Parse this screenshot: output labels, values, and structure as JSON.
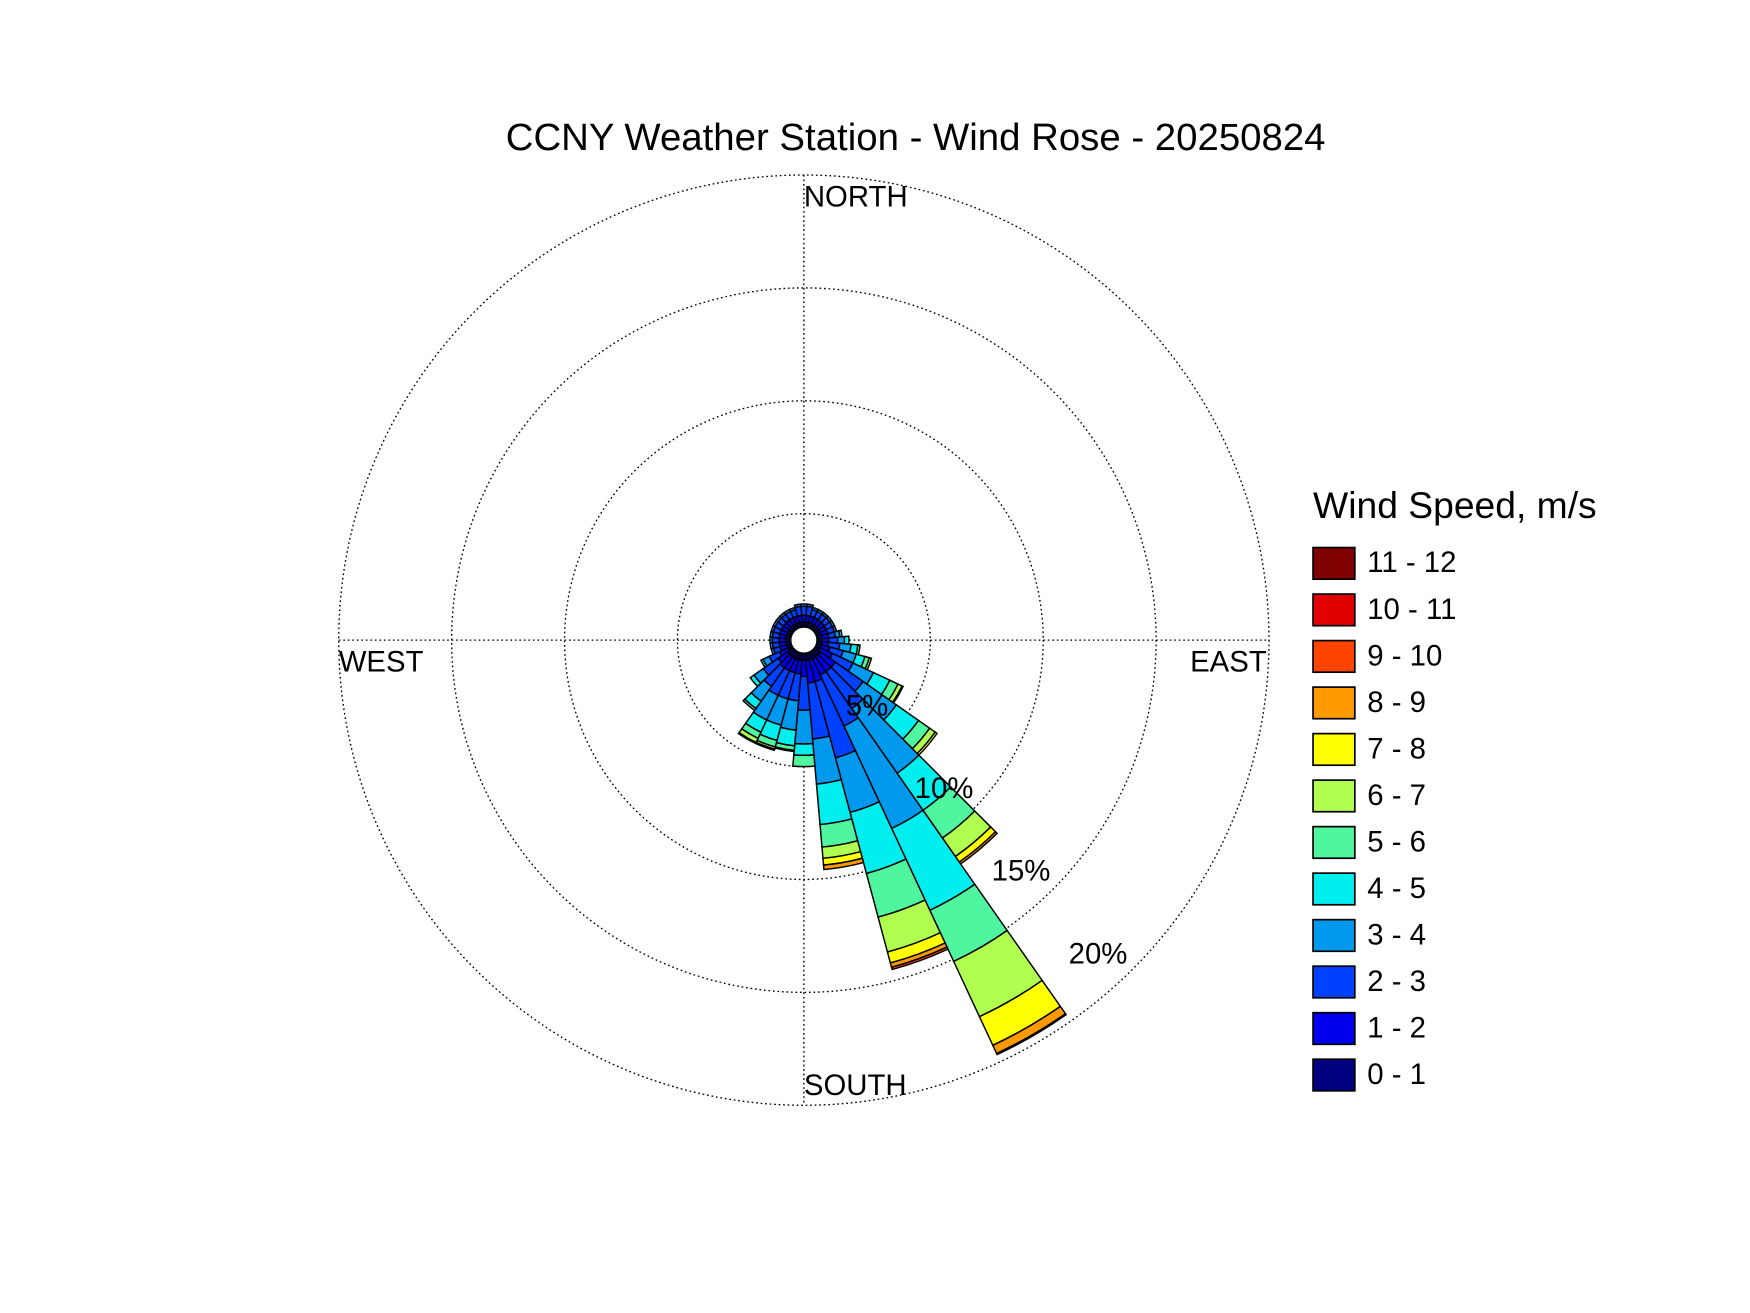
{
  "chart_data": {
    "type": "windrose",
    "title": "CCNY Weather Station - Wind Rose - 20250824",
    "legend_title": "Wind Speed, m/s",
    "directions": [
      "NORTH",
      "EAST",
      "SOUTH",
      "WEST"
    ],
    "x": [
      0,
      10,
      20,
      30,
      40,
      50,
      60,
      70,
      80,
      90,
      100,
      110,
      120,
      130,
      140,
      150,
      160,
      170,
      180,
      190,
      200,
      210,
      220,
      230,
      240,
      250,
      260,
      270,
      280,
      290,
      300,
      310,
      320,
      330,
      340,
      350
    ],
    "rlim": [
      0,
      20
    ],
    "rticks": [
      {
        "value": 5,
        "label": "5%"
      },
      {
        "value": 10,
        "label": "10%"
      },
      {
        "value": 15,
        "label": "15%"
      },
      {
        "value": 20,
        "label": "20%"
      }
    ],
    "grid": true,
    "legend": "right",
    "series": [
      {
        "name": "0 - 1",
        "color": "#000080",
        "values": [
          0.2,
          0.2,
          0.2,
          0.2,
          0.2,
          0.2,
          0.2,
          0.2,
          0.2,
          0.2,
          0.2,
          0.2,
          0.2,
          0.3,
          0.3,
          0.3,
          0.3,
          0.3,
          0.3,
          0.3,
          0.3,
          0.3,
          0.3,
          0.3,
          0.2,
          0.2,
          0.2,
          0.2,
          0.2,
          0.2,
          0.2,
          0.2,
          0.2,
          0.2,
          0.2,
          0.2
        ]
      },
      {
        "name": "1 - 2",
        "color": "#0000ee",
        "values": [
          0.3,
          0.3,
          0.3,
          0.3,
          0.3,
          0.3,
          0.3,
          0.3,
          0.3,
          0.3,
          0.3,
          0.4,
          0.6,
          0.8,
          0.8,
          0.8,
          1.0,
          1.0,
          0.7,
          0.6,
          0.6,
          0.6,
          0.6,
          0.5,
          0.4,
          0.3,
          0.3,
          0.3,
          0.3,
          0.3,
          0.3,
          0.3,
          0.3,
          0.3,
          0.3,
          0.3
        ]
      },
      {
        "name": "2 - 3",
        "color": "#0040ff",
        "values": [
          0.4,
          0.4,
          0.3,
          0.3,
          0.3,
          0.3,
          0.3,
          0.3,
          0.3,
          0.4,
          0.5,
          0.6,
          1.0,
          1.5,
          2.0,
          2.5,
          3.5,
          2.5,
          1.5,
          1.2,
          1.2,
          1.2,
          1.0,
          0.8,
          0.5,
          0.3,
          0.3,
          0.3,
          0.3,
          0.3,
          0.3,
          0.3,
          0.3,
          0.3,
          0.3,
          0.4
        ]
      },
      {
        "name": "3 - 4",
        "color": "#0099ee",
        "values": [
          0.1,
          0.1,
          0.1,
          0.1,
          0.1,
          0.1,
          0.1,
          0.1,
          0.2,
          0.3,
          0.5,
          0.6,
          1.0,
          1.8,
          3.5,
          5.0,
          2.5,
          2.0,
          1.5,
          1.3,
          1.2,
          1.2,
          0.8,
          0.5,
          0.3,
          0.1,
          0.1,
          0.1,
          0.1,
          0.1,
          0.1,
          0.1,
          0.1,
          0.1,
          0.1,
          0.1
        ]
      },
      {
        "name": "4 - 5",
        "color": "#00eeee",
        "values": [
          0,
          0,
          0,
          0,
          0,
          0,
          0,
          0,
          0.1,
          0.2,
          0.3,
          0.4,
          0.8,
          1.2,
          2.0,
          4.0,
          2.8,
          1.8,
          0.5,
          0.7,
          0.7,
          0.6,
          0.4,
          0.2,
          0.1,
          0,
          0,
          0,
          0,
          0,
          0,
          0,
          0,
          0,
          0,
          0
        ]
      },
      {
        "name": "5 - 6",
        "color": "#50f5a0",
        "values": [
          0,
          0,
          0,
          0,
          0,
          0,
          0,
          0,
          0,
          0,
          0.1,
          0.2,
          0.4,
          0.6,
          1.5,
          2.5,
          2.0,
          1.0,
          0.5,
          0.2,
          0.3,
          0.3,
          0.1,
          0,
          0,
          0,
          0,
          0,
          0,
          0,
          0,
          0,
          0,
          0,
          0,
          0
        ]
      },
      {
        "name": "6 - 7",
        "color": "#b0ff50",
        "values": [
          0,
          0,
          0,
          0,
          0,
          0,
          0,
          0,
          0,
          0,
          0,
          0.1,
          0.2,
          0.3,
          1.0,
          2.7,
          1.6,
          0.5,
          0,
          0.05,
          0.1,
          0.2,
          0,
          0,
          0,
          0,
          0,
          0,
          0,
          0,
          0,
          0,
          0,
          0,
          0,
          0
        ]
      },
      {
        "name": "7 - 8",
        "color": "#ffff00",
        "values": [
          0,
          0,
          0,
          0,
          0,
          0,
          0,
          0,
          0,
          0,
          0,
          0,
          0.05,
          0.1,
          0.3,
          1.4,
          0.5,
          0.3,
          0,
          0,
          0.05,
          0.05,
          0,
          0,
          0,
          0,
          0,
          0,
          0,
          0,
          0,
          0,
          0,
          0,
          0,
          0
        ]
      },
      {
        "name": "8 - 9",
        "color": "#ff9900",
        "values": [
          0,
          0,
          0,
          0,
          0,
          0,
          0,
          0,
          0,
          0,
          0,
          0,
          0,
          0,
          0.1,
          0.4,
          0.2,
          0.2,
          0,
          0,
          0,
          0,
          0,
          0,
          0,
          0,
          0,
          0,
          0,
          0,
          0,
          0,
          0,
          0,
          0,
          0
        ]
      },
      {
        "name": "9 - 10",
        "color": "#ff4400",
        "values": [
          0,
          0,
          0,
          0,
          0,
          0,
          0,
          0,
          0,
          0,
          0,
          0,
          0,
          0,
          0,
          0.05,
          0.1,
          0,
          0,
          0,
          0,
          0,
          0,
          0,
          0,
          0,
          0,
          0,
          0,
          0,
          0,
          0,
          0,
          0,
          0,
          0
        ]
      },
      {
        "name": "10 - 11",
        "color": "#e00000",
        "values": [
          0,
          0,
          0,
          0,
          0,
          0,
          0,
          0,
          0,
          0,
          0,
          0,
          0,
          0,
          0,
          0,
          0,
          0,
          0,
          0,
          0,
          0,
          0,
          0,
          0,
          0,
          0,
          0,
          0,
          0,
          0,
          0,
          0,
          0,
          0,
          0
        ]
      },
      {
        "name": "11 - 12",
        "color": "#800000",
        "values": [
          0,
          0,
          0,
          0,
          0,
          0,
          0,
          0,
          0,
          0,
          0,
          0,
          0,
          0,
          0,
          0,
          0,
          0,
          0,
          0,
          0,
          0,
          0,
          0,
          0,
          0,
          0,
          0,
          0,
          0,
          0,
          0,
          0,
          0,
          0,
          0
        ]
      }
    ]
  }
}
